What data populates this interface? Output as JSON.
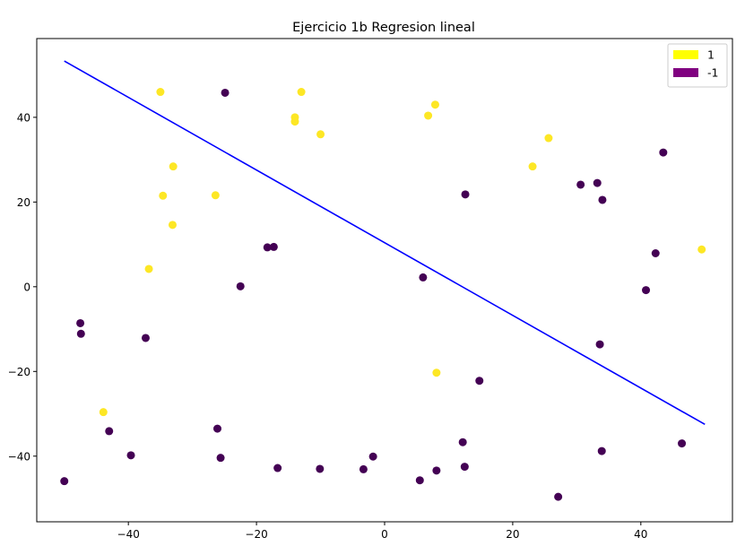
{
  "chart_data": {
    "type": "scatter",
    "title": "Ejercicio 1b Regresion lineal",
    "xlabel": "",
    "ylabel": "",
    "xlim": [
      -54.3,
      54.3
    ],
    "ylim": [
      -55.5,
      58.6
    ],
    "xticks": [
      -40,
      -20,
      0,
      20,
      40
    ],
    "yticks": [
      -40,
      -20,
      0,
      20,
      40
    ],
    "grid": false,
    "legend_position": "top-right",
    "legend": [
      {
        "label": "1",
        "color": "#ffff00"
      },
      {
        "label": "-1",
        "color": "#800080"
      }
    ],
    "series": [
      {
        "name": "1",
        "color": "#fde725",
        "points": [
          [
            -35,
            46
          ],
          [
            -13,
            46
          ],
          [
            -14,
            40
          ],
          [
            -14,
            39
          ],
          [
            -10,
            36
          ],
          [
            -33,
            28.4
          ],
          [
            -34.6,
            21.5
          ],
          [
            -26.4,
            21.6
          ],
          [
            -33.1,
            14.6
          ],
          [
            -36.8,
            4.2
          ],
          [
            7.9,
            43
          ],
          [
            6.8,
            40.4
          ],
          [
            25.6,
            35.1
          ],
          [
            23.1,
            28.4
          ],
          [
            49.5,
            8.8
          ],
          [
            8.1,
            -20.3
          ],
          [
            -43.9,
            -29.6
          ]
        ]
      },
      {
        "name": "-1",
        "color": "#440154",
        "points": [
          [
            -24.9,
            45.8
          ],
          [
            -18.3,
            9.3
          ],
          [
            -17.3,
            9.4
          ],
          [
            -22.5,
            0.1
          ],
          [
            -37.3,
            -12.1
          ],
          [
            -47.5,
            -8.6
          ],
          [
            -47.4,
            -11.1
          ],
          [
            -26.1,
            -33.5
          ],
          [
            -25.6,
            -40.4
          ],
          [
            -43,
            -34.1
          ],
          [
            -39.6,
            -39.8
          ],
          [
            -50,
            -45.9
          ],
          [
            -16.7,
            -42.8
          ],
          [
            -10.1,
            -43
          ],
          [
            -3.3,
            -43.1
          ],
          [
            -1.8,
            -40.1
          ],
          [
            5.5,
            -45.7
          ],
          [
            8.1,
            -43.4
          ],
          [
            12.2,
            -36.7
          ],
          [
            12.5,
            -42.5
          ],
          [
            14.8,
            -22.2
          ],
          [
            12.6,
            21.8
          ],
          [
            6,
            2.2
          ],
          [
            30.6,
            24.1
          ],
          [
            33.2,
            24.5
          ],
          [
            34,
            20.5
          ],
          [
            43.5,
            31.7
          ],
          [
            42.3,
            7.9
          ],
          [
            40.8,
            -0.8
          ],
          [
            33.6,
            -13.6
          ],
          [
            33.9,
            -38.8
          ],
          [
            46.4,
            -37
          ],
          [
            27.1,
            -49.6
          ]
        ]
      }
    ],
    "line": {
      "color": "#0000ff",
      "x": [
        -50,
        50
      ],
      "y": [
        53.3,
        -32.5
      ]
    }
  }
}
